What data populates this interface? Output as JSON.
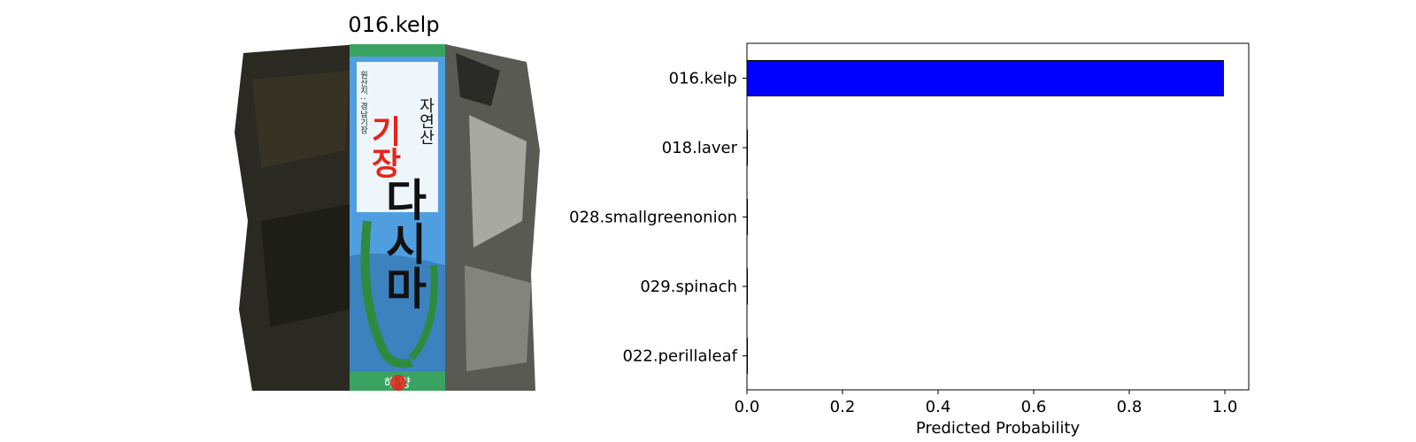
{
  "image_panel": {
    "title": "016.kelp",
    "package_text": {
      "brand_title": "기장",
      "product_name": "다시마",
      "origin": "자연산",
      "side_text": "원산지 : 경남기장",
      "bottom_text": "해 양"
    }
  },
  "colors": {
    "bar_fill": "#0000ff",
    "bar_edge": "#000000",
    "package_green": "#3aa361",
    "package_blue": "#4f9fe0",
    "brand_red": "#e8231a"
  },
  "chart_data": {
    "type": "bar",
    "orientation": "horizontal",
    "categories": [
      "016.kelp",
      "018.laver",
      "028.smallgreenonion",
      "029.spinach",
      "022.perillaleaf"
    ],
    "values": [
      0.997,
      0.001,
      0.001,
      0.0005,
      0.0005
    ],
    "xlabel": "Predicted Probability",
    "ylabel": "",
    "xlim": [
      0,
      1.05
    ],
    "xticks": [
      0.0,
      0.2,
      0.4,
      0.6,
      0.8,
      1.0
    ],
    "xtick_labels": [
      "0.0",
      "0.2",
      "0.4",
      "0.6",
      "0.8",
      "1.0"
    ],
    "grid": false,
    "legend": "none"
  }
}
